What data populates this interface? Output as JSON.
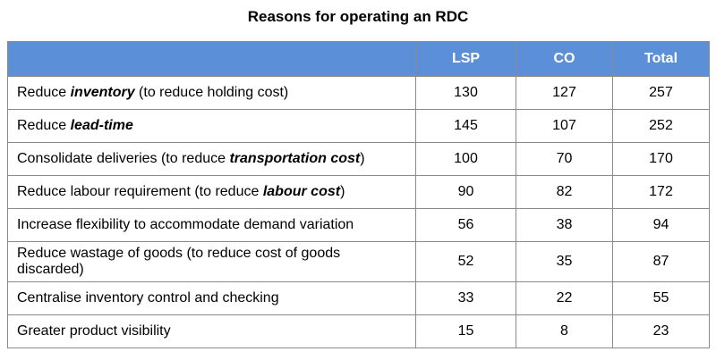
{
  "title": "Reasons for operating an RDC",
  "header": {
    "reason": "",
    "lsp": "LSP",
    "co": "CO",
    "total": "Total"
  },
  "rows": [
    {
      "reason": [
        {
          "t": "Reduce "
        },
        {
          "t": "inventory",
          "it": true
        },
        {
          "t": " (to reduce holding cost)"
        }
      ],
      "lsp": "130",
      "co": "127",
      "total": "257"
    },
    {
      "reason": [
        {
          "t": "Reduce "
        },
        {
          "t": "lead-time",
          "it": true
        }
      ],
      "lsp": "145",
      "co": "107",
      "total": "252"
    },
    {
      "reason": [
        {
          "t": "Consolidate deliveries (to reduce "
        },
        {
          "t": "transportation cost",
          "it": true
        },
        {
          "t": ")"
        }
      ],
      "lsp": "100",
      "co": "70",
      "total": "170"
    },
    {
      "reason": [
        {
          "t": "Reduce labour requirement (to reduce "
        },
        {
          "t": "labour cost",
          "it": true
        },
        {
          "t": ")"
        }
      ],
      "lsp": "90",
      "co": "82",
      "total": "172"
    },
    {
      "reason": [
        {
          "t": "Increase flexibility to accommodate demand variation"
        }
      ],
      "lsp": "56",
      "co": "38",
      "total": "94"
    },
    {
      "reason": [
        {
          "t": "Reduce wastage of goods (to reduce cost of goods discarded)"
        }
      ],
      "lsp": "52",
      "co": "35",
      "total": "87"
    },
    {
      "reason": [
        {
          "t": "Centralise inventory control and checking"
        }
      ],
      "lsp": "33",
      "co": "22",
      "total": "55"
    },
    {
      "reason": [
        {
          "t": "Greater product visibility"
        }
      ],
      "lsp": "15",
      "co": "8",
      "total": "23"
    }
  ]
}
